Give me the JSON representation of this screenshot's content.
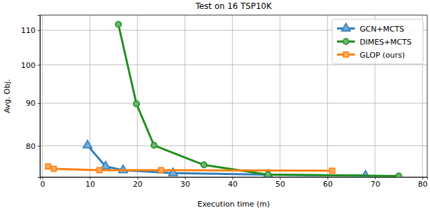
{
  "chart_data": {
    "type": "line",
    "title": "Test on 16 TSP10K",
    "x_label": "Execution time (m)",
    "y_label": "Avg. Obj.",
    "xlim": [
      -0.5,
      81
    ],
    "xticks": [
      0,
      10,
      20,
      30,
      40,
      50,
      60,
      70,
      80
    ],
    "ylim": [
      73.4,
      114.7
    ],
    "yticks": [
      80,
      90,
      100,
      110
    ],
    "log": "y",
    "grid": true,
    "legend": "upper right",
    "series": [
      {
        "name": "GCN+MCTS",
        "color": "#2e7ebc",
        "marker": "triangle",
        "line_style": "solid",
        "x": [
          9.5,
          13.3,
          17,
          27.5,
          47.5,
          68
        ],
        "values": [
          80.1,
          75.6,
          74.8,
          74.2,
          73.9,
          73.7
        ]
      },
      {
        "name": "DIMES+MCTS",
        "color": "#1f8f1f",
        "marker": "circle",
        "line_style": "solid",
        "x": [
          16,
          19.8,
          23.5,
          34,
          47.5,
          75
        ],
        "values": [
          111.8,
          89.8,
          80.1,
          75.9,
          73.9,
          73.6
        ]
      },
      {
        "name": "GLOP (ours)",
        "color": "#ff7f0e",
        "marker": "square",
        "line_style": "solid",
        "x": [
          1.2,
          2.4,
          12,
          25,
          61
        ],
        "values": [
          75.6,
          75.1,
          74.8,
          74.8,
          74.7
        ]
      }
    ]
  }
}
